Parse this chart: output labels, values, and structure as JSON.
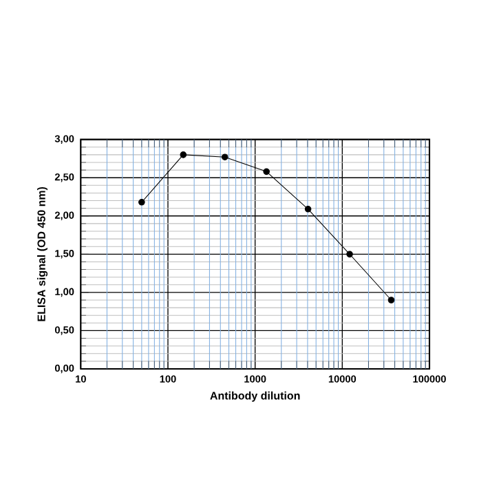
{
  "chart_data": {
    "type": "line",
    "xlabel": "Antibody dilution",
    "ylabel": "ELISA signal (OD 450 nm)",
    "x": [
      50,
      150,
      450,
      1350,
      4050,
      12150,
      36450
    ],
    "series": [
      {
        "color": "#000000",
        "values": [
          2.18,
          2.8,
          2.77,
          2.58,
          2.09,
          1.5,
          0.9
        ]
      }
    ],
    "log": "x",
    "xlim": [
      10,
      100000
    ],
    "xticks": [
      10,
      {
        "value": 20,
        "label": null
      },
      {
        "value": 30,
        "label": null
      },
      {
        "value": 40,
        "label": null
      },
      {
        "value": 50,
        "label": null
      },
      {
        "value": 60,
        "label": null
      },
      {
        "value": 70,
        "label": null
      },
      {
        "value": 80,
        "label": null
      },
      {
        "value": 90,
        "label": null
      },
      100,
      {
        "value": 200,
        "label": null
      },
      {
        "value": 300,
        "label": null
      },
      {
        "value": 400,
        "label": null
      },
      {
        "value": 500,
        "label": null
      },
      {
        "value": 600,
        "label": null
      },
      {
        "value": 700,
        "label": null
      },
      {
        "value": 800,
        "label": null
      },
      {
        "value": 900,
        "label": null
      },
      1000,
      {
        "value": 2000,
        "label": null
      },
      {
        "value": 3000,
        "label": null
      },
      {
        "value": 4000,
        "label": null
      },
      {
        "value": 5000,
        "label": null
      },
      {
        "value": 6000,
        "label": null
      },
      {
        "value": 7000,
        "label": null
      },
      {
        "value": 8000,
        "label": null
      },
      {
        "value": 9000,
        "label": null
      },
      10000,
      {
        "value": 20000,
        "label": null
      },
      {
        "value": 30000,
        "label": null
      },
      {
        "value": 40000,
        "label": null
      },
      {
        "value": 50000,
        "label": null
      },
      {
        "value": 60000,
        "label": null
      },
      {
        "value": 70000,
        "label": null
      },
      {
        "value": 80000,
        "label": null
      },
      {
        "value": 90000,
        "label": null
      },
      100000
    ],
    "ylim": [
      0,
      3
    ],
    "yticks": [
      {
        "value": 0,
        "label": "0,00"
      },
      {
        "value": 0.5,
        "label": "0,50"
      },
      {
        "value": 1,
        "label": "1,00"
      },
      {
        "value": 1.5,
        "label": "1,50"
      },
      {
        "value": 2,
        "label": "2,00"
      },
      {
        "value": 2.5,
        "label": "2,50"
      },
      {
        "value": 3,
        "label": "3,00"
      }
    ],
    "grid": true,
    "marker": "circle",
    "line_style": "solid"
  }
}
